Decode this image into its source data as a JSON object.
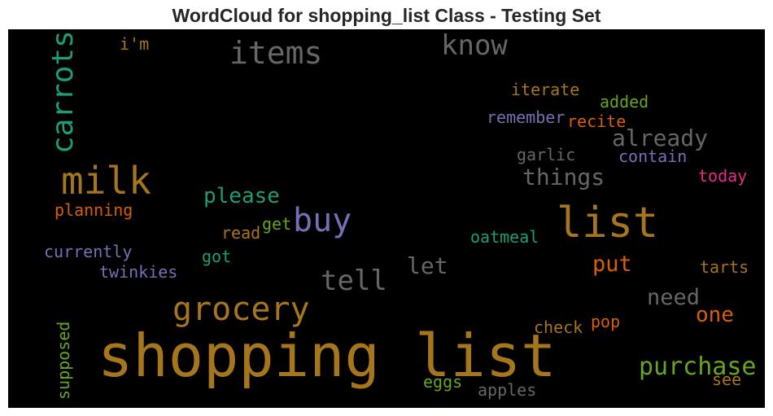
{
  "title": "WordCloud for shopping_list Class - Testing Set",
  "colors": {
    "background": "#000000",
    "brown": "#A6761D",
    "gray": "#666666",
    "teal": "#1B9E77",
    "purple": "#7570B3",
    "orange": "#D95F02",
    "green": "#66A61E",
    "pink": "#E7298A"
  },
  "chart_data": {
    "type": "wordcloud",
    "title": "WordCloud for shopping_list Class - Testing Set",
    "words": [
      {
        "text": "shopping list",
        "color": "brown"
      },
      {
        "text": "list",
        "color": "brown"
      },
      {
        "text": "milk",
        "color": "brown"
      },
      {
        "text": "carrots",
        "color": "teal"
      },
      {
        "text": "grocery",
        "color": "brown"
      },
      {
        "text": "items",
        "color": "gray"
      },
      {
        "text": "buy",
        "color": "purple"
      },
      {
        "text": "know",
        "color": "gray"
      },
      {
        "text": "tell",
        "color": "gray"
      },
      {
        "text": "purchase",
        "color": "green"
      },
      {
        "text": "already",
        "color": "gray"
      },
      {
        "text": "things",
        "color": "gray"
      },
      {
        "text": "please",
        "color": "teal"
      },
      {
        "text": "let",
        "color": "gray"
      },
      {
        "text": "need",
        "color": "gray"
      },
      {
        "text": "put",
        "color": "orange"
      },
      {
        "text": "one",
        "color": "orange"
      },
      {
        "text": "iterate",
        "color": "brown"
      },
      {
        "text": "remember",
        "color": "purple"
      },
      {
        "text": "recite",
        "color": "orange"
      },
      {
        "text": "added",
        "color": "green"
      },
      {
        "text": "contain",
        "color": "purple"
      },
      {
        "text": "garlic",
        "color": "gray"
      },
      {
        "text": "today",
        "color": "pink"
      },
      {
        "text": "oatmeal",
        "color": "teal"
      },
      {
        "text": "tarts",
        "color": "brown"
      },
      {
        "text": "check",
        "color": "brown"
      },
      {
        "text": "pop",
        "color": "orange"
      },
      {
        "text": "see",
        "color": "brown"
      },
      {
        "text": "eggs",
        "color": "green"
      },
      {
        "text": "apples",
        "color": "gray"
      },
      {
        "text": "planning",
        "color": "orange"
      },
      {
        "text": "currently",
        "color": "purple"
      },
      {
        "text": "twinkies",
        "color": "purple"
      },
      {
        "text": "read",
        "color": "brown"
      },
      {
        "text": "get",
        "color": "green"
      },
      {
        "text": "got",
        "color": "teal"
      },
      {
        "text": "supposed",
        "color": "green"
      },
      {
        "text": "i'm",
        "color": "brown"
      }
    ]
  }
}
